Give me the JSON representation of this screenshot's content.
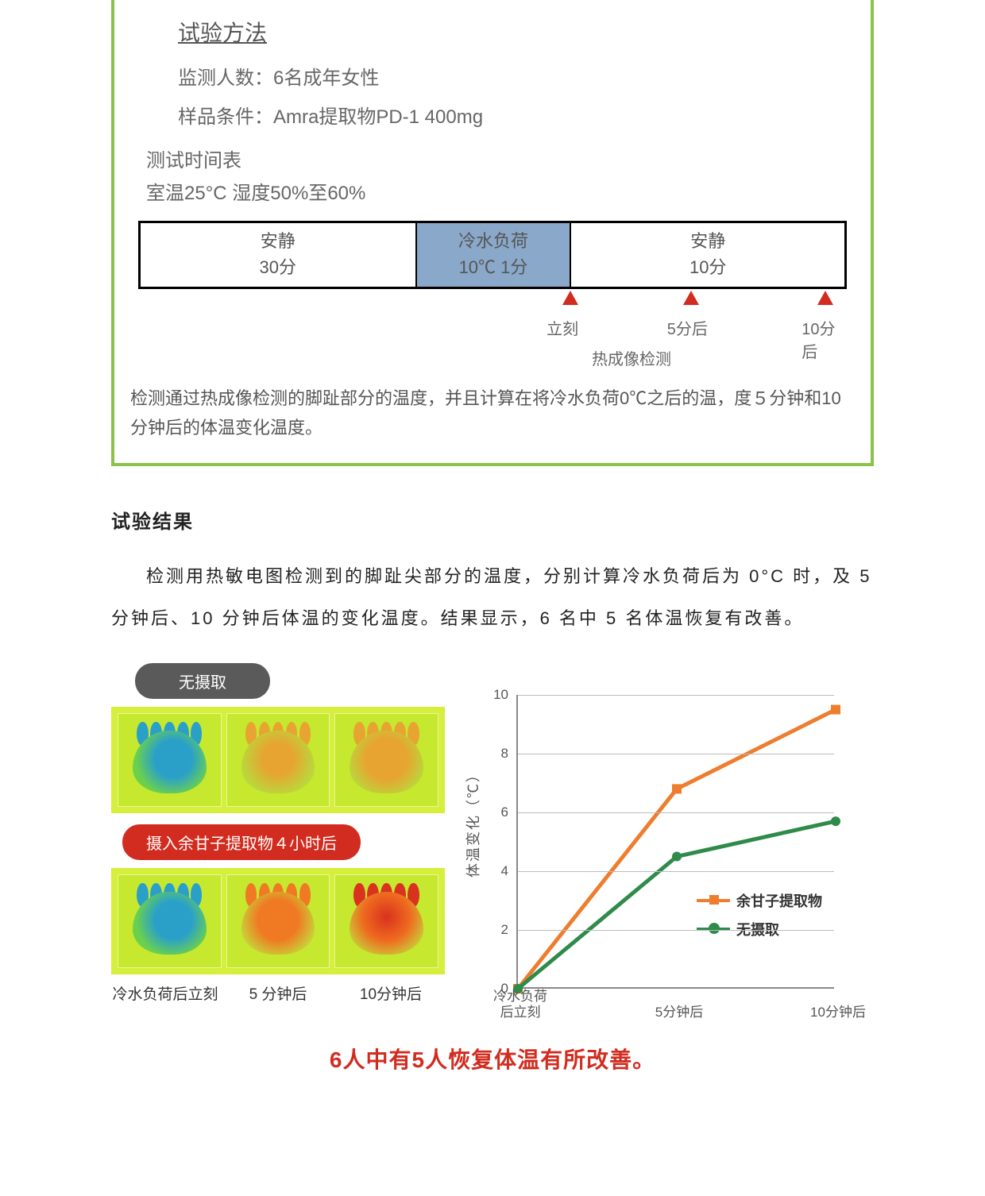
{
  "method": {
    "heading": "试验方法",
    "participants_label": "监测人数：",
    "participants_value": "6名成年女性",
    "sample_label": "样品条件：",
    "sample_value": "Amra提取物PD-1 400mg",
    "schedule_heading": "测试时间表",
    "schedule_cond": "室温25°C   湿度50%至60%",
    "timeline": {
      "cells": [
        {
          "title": "安静",
          "sub": "30分",
          "bg": "#ffffff",
          "width_pct": 39
        },
        {
          "title": "冷水负荷",
          "sub": "10℃  1分",
          "bg": "#8aa8c9",
          "width_pct": 22
        },
        {
          "title": "安静",
          "sub": "10分",
          "bg": "#ffffff",
          "width_pct": 39
        }
      ],
      "arrows": [
        {
          "pos_pct": 61,
          "label": "立刻"
        },
        {
          "pos_pct": 78,
          "label": "5分后"
        },
        {
          "pos_pct": 97,
          "label": "10分后"
        }
      ],
      "arrow_color": "#d12c1f",
      "thermal_note": "热成像检测"
    },
    "description": "检测通过热成像检测的脚趾部分的温度，并且计算在将冷水负荷0℃之后的温，度５分钟和10分钟后的体温变化温度。"
  },
  "results": {
    "heading": "试验结果",
    "paragraph": "检测用热敏电图检测到的脚趾尖部分的温度，分别计算冷水负荷后为 0°C 时，及 5 分钟后、10 分钟后体温的变化温度。结果显示，6 名中 5 名体温恢复有改善。"
  },
  "thermo": {
    "label_none": "无摄取",
    "label_amla": "摄入余甘子提取物４小时后",
    "captions": [
      "冷水负荷后立刻",
      "5 分钟后",
      "10分钟后"
    ],
    "grid_bg": "#d5ef3a",
    "cell_bg": "#c6e82e",
    "rows": [
      {
        "name": "none",
        "feet": [
          {
            "foot_fill": "radial-gradient(circle at 55% 45%, #2aa0c9 0%, #2aa0c9 35%, #6bd14d 70%)",
            "toe_fill": "#2aa0c9"
          },
          {
            "foot_fill": "radial-gradient(circle at 50% 45%, #e7a431 0%, #e7a431 30%, #b9d93c 75%)",
            "toe_fill": "#e7a431"
          },
          {
            "foot_fill": "radial-gradient(circle at 50% 45%, #e7a431 0%, #e7a431 40%, #b9d93c 80%)",
            "toe_fill": "#e7a431"
          }
        ]
      },
      {
        "name": "amla",
        "feet": [
          {
            "foot_fill": "radial-gradient(circle at 55% 45%, #2aa0c9 0%, #2aa0c9 35%, #6bd14d 70%)",
            "toe_fill": "#2aa0c9"
          },
          {
            "foot_fill": "radial-gradient(circle at 50% 45%, #ef7a23 0%, #ef7a23 40%, #c6d93a 80%)",
            "toe_fill": "#ef7a23"
          },
          {
            "foot_fill": "radial-gradient(circle at 50% 40%, #d9321e 0%, #ef6a1f 45%, #c6d93a 85%)",
            "toe_fill": "#d9321e"
          }
        ]
      }
    ]
  },
  "chart": {
    "type": "line",
    "y_title": "体温变化（℃）",
    "x_categories": [
      "冷水负荷\n后立刻",
      "5分钟后",
      "10分钟后"
    ],
    "y_ticks": [
      0,
      2,
      4,
      6,
      8,
      10
    ],
    "ylim": [
      0,
      10
    ],
    "grid_color": "#bbbbbb",
    "axis_color": "#888888",
    "background_color": "#ffffff",
    "series": [
      {
        "name": "余甘子提取物",
        "label": "余甘子提取物",
        "color": "#ee7d2e",
        "marker": "square",
        "values": [
          0,
          6.8,
          9.5
        ]
      },
      {
        "name": "无摄取",
        "label": "无摄取",
        "color": "#2f8b4a",
        "marker": "circle",
        "values": [
          0,
          4.5,
          5.7
        ]
      }
    ],
    "line_width": 5,
    "marker_size": 12,
    "label_fontsize": 17
  },
  "conclusion": "6人中有5人恢复体温有所改善。",
  "colors": {
    "panel_border": "#8bc34a",
    "pill_gray": "#5a5a5a",
    "pill_red": "#d12c1f",
    "text_main": "#333333",
    "text_sub": "#666666",
    "conclusion": "#d12c1f"
  }
}
